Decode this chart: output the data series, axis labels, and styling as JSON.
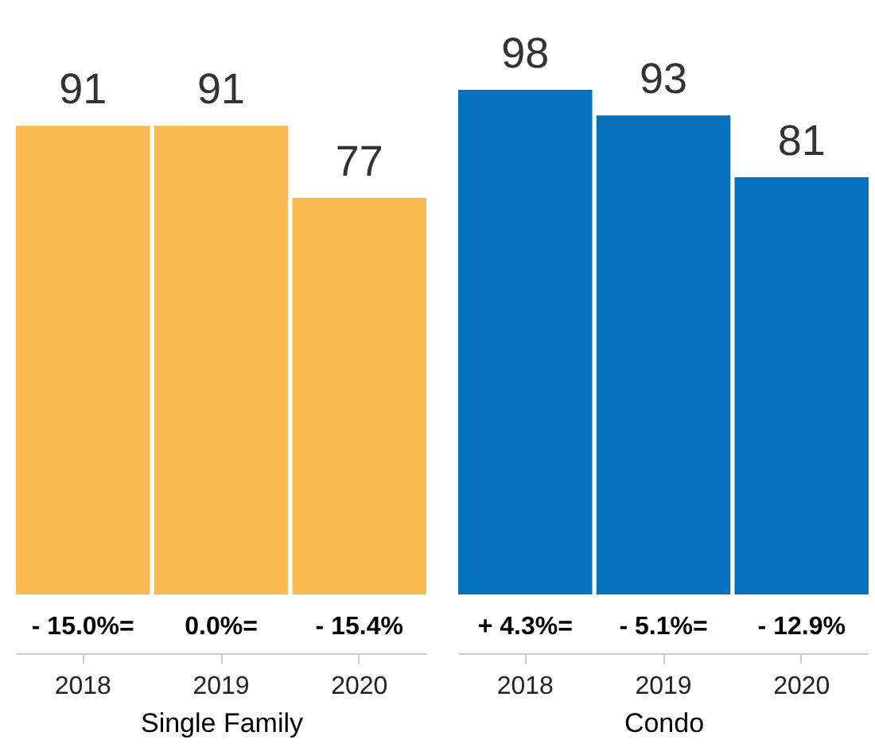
{
  "chart_data": [
    {
      "type": "bar",
      "categories": [
        "2018",
        "2019",
        "2020"
      ],
      "values": [
        91,
        91,
        77
      ],
      "color": "#fbbb52",
      "data_labels": true,
      "xlabel": "Single Family",
      "annotations": [
        "- 15.0%=",
        "0.0%=",
        "- 15.4%"
      ]
    },
    {
      "type": "bar",
      "categories": [
        "2018",
        "2019",
        "2020"
      ],
      "values": [
        98,
        93,
        81
      ],
      "color": "#0571bc",
      "data_labels": true,
      "xlabel": "Condo",
      "annotations": [
        "+ 4.3%=",
        "- 5.1%=",
        "- 12.9%"
      ]
    }
  ]
}
